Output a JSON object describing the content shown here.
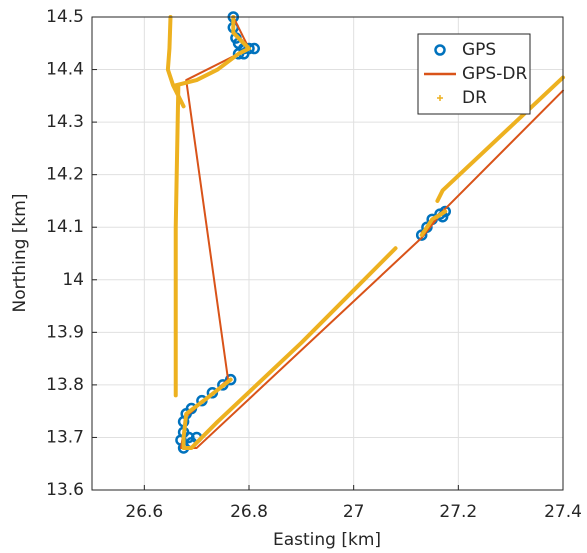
{
  "chart_data": {
    "type": "line",
    "xlabel": "Easting [km]",
    "ylabel": "Northing [km]",
    "xlim": [
      26.5,
      27.4
    ],
    "xticks": [
      26.6,
      26.8,
      27,
      27.2,
      27.4
    ],
    "ylim": [
      13.6,
      14.5
    ],
    "yticks": [
      13.6,
      13.7,
      13.8,
      13.9,
      14,
      14.1,
      14.2,
      14.3,
      14.4,
      14.5
    ],
    "grid": true,
    "legend": "northeast",
    "series": [
      {
        "name": "GPS",
        "color": "#0072bd",
        "style": "circles",
        "x": [
          26.77,
          26.77,
          26.775,
          26.78,
          26.79,
          26.8,
          26.81,
          26.79,
          26.78,
          26.765,
          26.75,
          26.73,
          26.71,
          26.69,
          26.68,
          26.675,
          26.675,
          26.67,
          26.675,
          26.69,
          26.7,
          26.685,
          27.13,
          27.14,
          27.15,
          27.165,
          27.175,
          27.17
        ],
        "values": [
          14.5,
          14.48,
          14.46,
          14.45,
          14.44,
          14.44,
          14.44,
          14.43,
          14.43,
          13.81,
          13.8,
          13.785,
          13.77,
          13.755,
          13.745,
          13.73,
          13.71,
          13.695,
          13.68,
          13.69,
          13.7,
          13.7,
          14.085,
          14.1,
          14.115,
          14.125,
          14.13,
          14.12
        ]
      },
      {
        "name": "GPS-DR",
        "color": "#d95319",
        "style": "line",
        "x": [
          26.77,
          26.8,
          26.78,
          26.68,
          26.76,
          26.68,
          26.67,
          26.7,
          27.13,
          27.17,
          27.13,
          27.4
        ],
        "values": [
          14.5,
          14.44,
          14.43,
          14.38,
          13.81,
          13.74,
          13.68,
          13.68,
          14.08,
          14.13,
          14.09,
          14.36
        ]
      },
      {
        "name": "DR",
        "color": "#edb120",
        "style": "dots",
        "x": [
          26.65,
          26.648,
          26.645,
          26.655,
          26.675,
          null,
          26.66,
          26.7,
          26.74,
          26.78,
          26.8,
          26.79,
          26.77,
          26.77,
          null,
          26.665,
          26.66,
          26.66,
          null,
          26.765,
          26.72,
          26.68,
          26.675,
          26.675,
          26.69,
          26.74,
          26.9,
          27.08,
          null,
          27.13,
          27.15,
          27.175,
          27.16,
          null,
          27.16,
          27.17,
          27.4
        ],
        "values": [
          14.5,
          14.44,
          14.4,
          14.37,
          14.33,
          null,
          14.37,
          14.38,
          14.4,
          14.43,
          14.44,
          14.45,
          14.47,
          14.5,
          null,
          14.37,
          14.1,
          13.78,
          null,
          13.81,
          13.775,
          13.745,
          13.7,
          13.68,
          13.68,
          13.73,
          13.88,
          14.06,
          null,
          14.085,
          14.115,
          14.13,
          14.12,
          null,
          14.15,
          14.17,
          14.385
        ]
      }
    ]
  }
}
